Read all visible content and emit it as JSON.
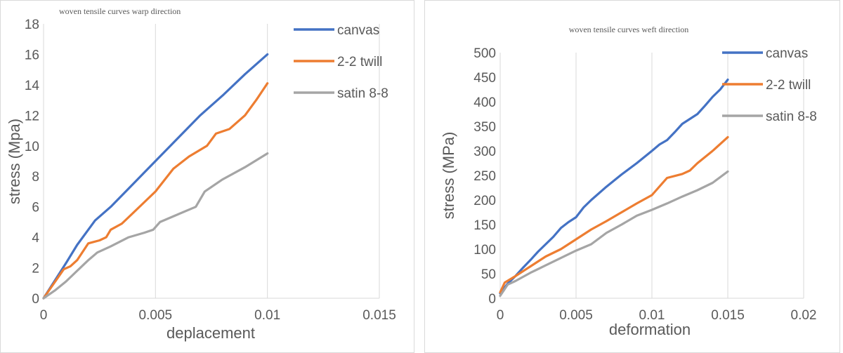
{
  "chart_data": [
    {
      "type": "line",
      "title": "woven tensile curves warp direction",
      "xlabel": "deplacement",
      "ylabel": "stress (Mpa)",
      "xlim": [
        0,
        0.015
      ],
      "ylim": [
        0,
        18
      ],
      "xticks": [
        "0",
        "0.005",
        "0.01",
        "0.015"
      ],
      "xtick_values": [
        0,
        0.005,
        0.01,
        0.015
      ],
      "yticks": [
        "0",
        "2",
        "4",
        "6",
        "8",
        "10",
        "12",
        "14",
        "16",
        "18"
      ],
      "ytick_values": [
        0,
        2,
        4,
        6,
        8,
        10,
        12,
        14,
        16,
        18
      ],
      "grid": "vertical",
      "legend_position": "top-right",
      "series": [
        {
          "name": "canvas",
          "color": "#4472C4",
          "points": [
            [
              0,
              0
            ],
            [
              0.001,
              2.3
            ],
            [
              0.0015,
              3.5
            ],
            [
              0.0023,
              5.1
            ],
            [
              0.003,
              6.0
            ],
            [
              0.004,
              7.5
            ],
            [
              0.005,
              9.0
            ],
            [
              0.006,
              10.5
            ],
            [
              0.007,
              12.0
            ],
            [
              0.008,
              13.3
            ],
            [
              0.009,
              14.7
            ],
            [
              0.01,
              16.0
            ]
          ]
        },
        {
          "name": "2-2 twill",
          "color": "#ED7D31",
          "points": [
            [
              0,
              0
            ],
            [
              0.0009,
              1.9
            ],
            [
              0.0012,
              2.1
            ],
            [
              0.0015,
              2.5
            ],
            [
              0.002,
              3.6
            ],
            [
              0.0025,
              3.8
            ],
            [
              0.0028,
              4.0
            ],
            [
              0.003,
              4.5
            ],
            [
              0.0035,
              4.9
            ],
            [
              0.004,
              5.6
            ],
            [
              0.005,
              7.0
            ],
            [
              0.0058,
              8.5
            ],
            [
              0.0065,
              9.3
            ],
            [
              0.0073,
              10.0
            ],
            [
              0.0077,
              10.8
            ],
            [
              0.0083,
              11.1
            ],
            [
              0.009,
              12.0
            ],
            [
              0.0095,
              13.0
            ],
            [
              0.01,
              14.1
            ]
          ]
        },
        {
          "name": "satin 8-8",
          "color": "#A5A5A5",
          "points": [
            [
              0,
              0
            ],
            [
              0.0005,
              0.5
            ],
            [
              0.001,
              1.1
            ],
            [
              0.0015,
              1.8
            ],
            [
              0.002,
              2.5
            ],
            [
              0.0024,
              3.0
            ],
            [
              0.003,
              3.4
            ],
            [
              0.0038,
              4.0
            ],
            [
              0.0045,
              4.3
            ],
            [
              0.0049,
              4.5
            ],
            [
              0.0052,
              5.0
            ],
            [
              0.006,
              5.5
            ],
            [
              0.0068,
              6.0
            ],
            [
              0.0072,
              7.0
            ],
            [
              0.008,
              7.8
            ],
            [
              0.009,
              8.6
            ],
            [
              0.01,
              9.5
            ]
          ]
        }
      ]
    },
    {
      "type": "line",
      "title": "woven tensile curves weft direction",
      "xlabel": "deformation",
      "ylabel": "stress (MPa)",
      "xlim": [
        0,
        0.02
      ],
      "ylim": [
        0,
        500
      ],
      "xticks": [
        "0",
        "0.005",
        "0.01",
        "0.015",
        "0.02"
      ],
      "xtick_values": [
        0,
        0.005,
        0.01,
        0.015,
        0.02
      ],
      "yticks": [
        "0",
        "50",
        "100",
        "150",
        "200",
        "250",
        "300",
        "350",
        "400",
        "450",
        "500"
      ],
      "ytick_values": [
        0,
        50,
        100,
        150,
        200,
        250,
        300,
        350,
        400,
        450,
        500
      ],
      "grid": "vertical",
      "legend_position": "top-right",
      "series": [
        {
          "name": "canvas",
          "color": "#4472C4",
          "points": [
            [
              0,
              10
            ],
            [
              0.0005,
              30
            ],
            [
              0.001,
              45
            ],
            [
              0.0015,
              62
            ],
            [
              0.002,
              78
            ],
            [
              0.0025,
              95
            ],
            [
              0.003,
              110
            ],
            [
              0.0035,
              125
            ],
            [
              0.004,
              143
            ],
            [
              0.0045,
              155
            ],
            [
              0.005,
              165
            ],
            [
              0.0055,
              185
            ],
            [
              0.006,
              200
            ],
            [
              0.007,
              227
            ],
            [
              0.008,
              252
            ],
            [
              0.009,
              275
            ],
            [
              0.01,
              300
            ],
            [
              0.0105,
              313
            ],
            [
              0.011,
              322
            ],
            [
              0.0115,
              338
            ],
            [
              0.012,
              355
            ],
            [
              0.0125,
              365
            ],
            [
              0.013,
              375
            ],
            [
              0.0135,
              392
            ],
            [
              0.014,
              410
            ],
            [
              0.0145,
              425
            ],
            [
              0.015,
              445
            ]
          ]
        },
        {
          "name": "2-2 twill",
          "color": "#ED7D31",
          "points": [
            [
              0,
              12
            ],
            [
              0.0003,
              32
            ],
            [
              0.001,
              45
            ],
            [
              0.002,
              65
            ],
            [
              0.003,
              85
            ],
            [
              0.004,
              100
            ],
            [
              0.005,
              120
            ],
            [
              0.006,
              140
            ],
            [
              0.007,
              157
            ],
            [
              0.008,
              175
            ],
            [
              0.009,
              193
            ],
            [
              0.01,
              210
            ],
            [
              0.011,
              245
            ],
            [
              0.012,
              253
            ],
            [
              0.0125,
              260
            ],
            [
              0.013,
              275
            ],
            [
              0.014,
              300
            ],
            [
              0.015,
              328
            ]
          ]
        },
        {
          "name": "satin 8-8",
          "color": "#A5A5A5",
          "points": [
            [
              0,
              5
            ],
            [
              0.0005,
              28
            ],
            [
              0.001,
              35
            ],
            [
              0.002,
              52
            ],
            [
              0.003,
              67
            ],
            [
              0.004,
              82
            ],
            [
              0.005,
              97
            ],
            [
              0.006,
              110
            ],
            [
              0.007,
              133
            ],
            [
              0.008,
              150
            ],
            [
              0.009,
              168
            ],
            [
              0.01,
              180
            ],
            [
              0.011,
              193
            ],
            [
              0.012,
              207
            ],
            [
              0.013,
              220
            ],
            [
              0.014,
              235
            ],
            [
              0.015,
              258
            ]
          ]
        }
      ]
    }
  ]
}
